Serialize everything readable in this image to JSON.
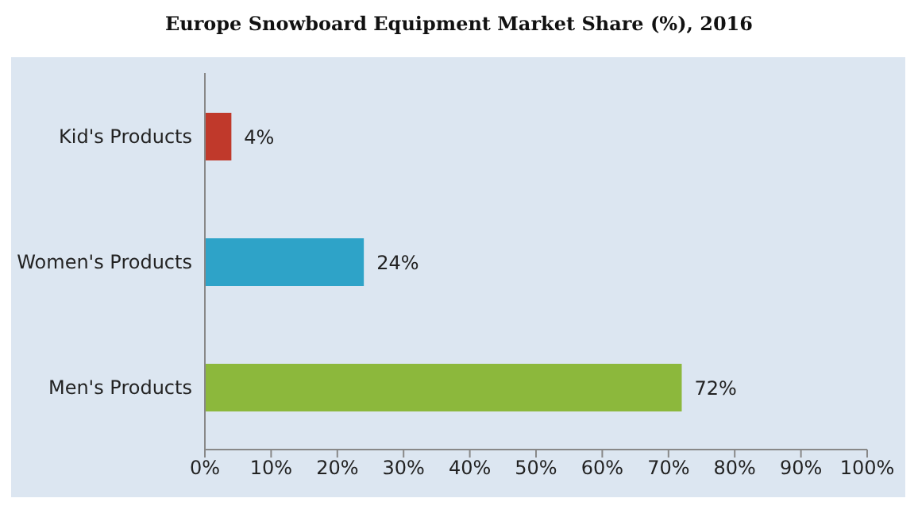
{
  "chart_data": {
    "type": "bar",
    "orientation": "horizontal",
    "title": "Europe Snowboard Equipment Market Share (%), 2016",
    "categories": [
      "Kid's Products",
      "Women's Products",
      "Men's Products"
    ],
    "values": [
      4,
      24,
      72
    ],
    "colors": [
      "#c0392b",
      "#2ea3c8",
      "#8cb83c"
    ],
    "value_labels": [
      "4%",
      "24%",
      "72%"
    ],
    "xlim": [
      0,
      100
    ],
    "xticks": [
      {
        "value": 0,
        "label": "0%"
      },
      {
        "value": 10,
        "label": "10%"
      },
      {
        "value": 20,
        "label": "20%"
      },
      {
        "value": 30,
        "label": "30%"
      },
      {
        "value": 40,
        "label": "40%"
      },
      {
        "value": 50,
        "label": "50%"
      },
      {
        "value": 60,
        "label": "60%"
      },
      {
        "value": 70,
        "label": "70%"
      },
      {
        "value": 80,
        "label": "80%"
      },
      {
        "value": 90,
        "label": "90%"
      },
      {
        "value": 100,
        "label": "100%"
      }
    ],
    "grid": false,
    "legend": false
  }
}
